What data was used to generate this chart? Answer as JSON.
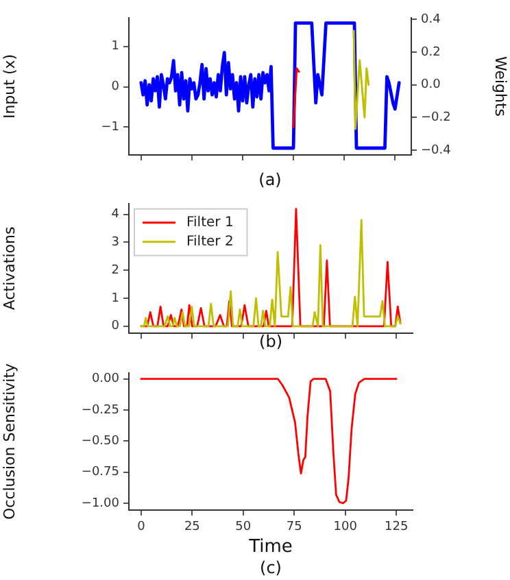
{
  "chart_data": [
    {
      "type": "line",
      "ylabel": "Input (x)",
      "y2label": "Weights",
      "annotations": [
        "(a)"
      ],
      "xlim": [
        -6,
        133
      ],
      "xticks": [
        {
          "value": 0,
          "label": null
        },
        {
          "value": 25,
          "label": null
        },
        {
          "value": 50,
          "label": null
        },
        {
          "value": 75,
          "label": null
        },
        {
          "value": 100,
          "label": null
        },
        {
          "value": 125,
          "label": null
        }
      ],
      "ylim": [
        -1.69,
        1.71
      ],
      "yticks": [
        {
          "value": -1,
          "label": "−1"
        },
        0,
        1
      ],
      "y2lim": [
        -0.43,
        0.41
      ],
      "y2ticks": [
        {
          "value": -0.4,
          "label": "−0.4"
        },
        {
          "value": -0.2,
          "label": "−0.2"
        },
        {
          "value": 0,
          "label": "0.0"
        },
        0.2,
        0.4
      ],
      "tick_labels": "y",
      "grid": false,
      "legend": false,
      "marker": "none",
      "line_style": "solid",
      "series": [
        {
          "color": "#0000ff",
          "x": [
            0,
            1,
            2,
            3,
            4,
            5,
            6,
            7,
            8,
            9,
            10,
            11,
            12,
            13,
            14,
            15,
            16,
            17,
            18,
            19,
            20,
            21,
            22,
            23,
            24,
            25,
            26,
            27,
            28,
            29,
            30,
            31,
            32,
            33,
            34,
            35,
            36,
            37,
            38,
            39,
            40,
            41,
            42,
            43,
            44,
            45,
            46,
            47,
            48,
            49,
            50,
            51,
            52,
            53,
            54,
            55,
            56,
            57,
            58,
            59,
            60,
            61,
            62,
            63,
            64,
            65,
            75,
            76,
            84,
            86,
            87,
            89,
            91,
            105,
            106,
            120,
            121,
            122,
            124,
            125,
            127
          ],
          "values": [
            0.1,
            -0.2,
            0.15,
            -0.45,
            0.05,
            -0.35,
            0.2,
            -0.1,
            0.25,
            -0.5,
            0.3,
            0.05,
            -0.3,
            0.2,
            0.1,
            0.25,
            0.65,
            -0.1,
            0.3,
            -0.45,
            0.35,
            -0.3,
            0.15,
            -0.6,
            0.2,
            -0.05,
            0.1,
            -0.3,
            -0.2,
            0.1,
            0.55,
            -0.3,
            0.45,
            -0.1,
            0.2,
            -0.2,
            0.1,
            -0.25,
            0.3,
            -0.1,
            0.5,
            0.85,
            -0.2,
            0.6,
            -0.05,
            0.3,
            -0.3,
            0.1,
            -0.6,
            0.25,
            -0.35,
            0.25,
            -0.4,
            0.05,
            0.3,
            -0.5,
            0.2,
            -0.25,
            0.3,
            -0.3,
            0.35,
            0.1,
            0.3,
            -0.1,
            0.5,
            -1.52,
            -1.52,
            1.58,
            1.58,
            -0.4,
            0.3,
            -0.2,
            1.58,
            1.58,
            -1.52,
            -1.52,
            0.25,
            0.1,
            -0.4,
            -0.55,
            0.1
          ]
        },
        {
          "color": "#ff0000",
          "axis": "y2",
          "x": [
            75,
            76.6,
            77.7
          ],
          "values": [
            -0.26,
            0.1,
            0.08
          ]
        },
        {
          "color": "#bfbf00",
          "axis": "y2",
          "x": [
            104.7,
            105.5,
            107.6,
            110,
            111,
            112
          ],
          "values": [
            0.33,
            -0.27,
            0.15,
            -0.2,
            0.1,
            0
          ]
        }
      ]
    },
    {
      "type": "line",
      "ylabel": "Activations",
      "annotations": [
        "(b)"
      ],
      "xlim": [
        -6,
        133
      ],
      "xticks": [
        {
          "value": 0,
          "label": null
        },
        {
          "value": 25,
          "label": null
        },
        {
          "value": 50,
          "label": null
        },
        {
          "value": 75,
          "label": null
        },
        {
          "value": 100,
          "label": null
        },
        {
          "value": 125,
          "label": null
        }
      ],
      "ylim": [
        -0.25,
        4.39
      ],
      "yticks": [
        0,
        1,
        2,
        3,
        4
      ],
      "tick_labels": "y",
      "grid": false,
      "legend": "top left",
      "marker": "none",
      "line_style": "solid",
      "series": [
        {
          "name": "Filter 1",
          "color": "#ff0000",
          "x": [
            0,
            3,
            4.5,
            6,
            8,
            9.5,
            11,
            13,
            14.6,
            16,
            18,
            19.8,
            21,
            22.5,
            23.6,
            25,
            27.5,
            29.3,
            31,
            36.5,
            38.7,
            40.5,
            42,
            43.2,
            44.5,
            49,
            50.7,
            52.5,
            60,
            61.3,
            62.5,
            74,
            75.9,
            78,
            89.5,
            91,
            92.5,
            119,
            120.7,
            122.5,
            124.5,
            125.7,
            127
          ],
          "values": [
            0,
            0,
            0.5,
            0,
            0,
            0.7,
            0,
            0,
            0.4,
            0,
            0,
            0.6,
            0,
            0,
            0.75,
            0,
            0,
            0.65,
            0,
            0,
            0.4,
            0,
            0,
            0.9,
            0,
            0,
            0.75,
            0,
            0,
            0.55,
            0,
            0,
            4.2,
            0,
            0,
            2.35,
            0,
            0,
            2.3,
            0,
            0,
            0.7,
            0.1
          ]
        },
        {
          "name": "Filter 2",
          "color": "#bfbf00",
          "x": [
            0,
            1.5,
            2.3,
            3.2,
            11.5,
            13,
            14.2,
            15.5,
            16.4,
            17.5,
            19,
            20.3,
            21.5,
            23.5,
            24.8,
            26,
            33,
            34.2,
            35.5,
            42.5,
            43.9,
            45,
            47.3,
            48.4,
            49.5,
            55,
            56.3,
            57.5,
            58.7,
            59.7,
            60.8,
            63,
            64.2,
            65.5,
            66.9,
            68.7,
            72,
            73.2,
            74.3,
            84,
            85,
            86.6,
            87.8,
            89,
            103.5,
            104.7,
            106,
            107.9,
            109.2,
            117,
            118.2,
            119.4,
            124.5,
            125.7,
            127
          ],
          "values": [
            0,
            0,
            0.3,
            0,
            0,
            0.35,
            0,
            0,
            0.3,
            0,
            0,
            0.5,
            0,
            0,
            0.7,
            0,
            0,
            0.8,
            0,
            0,
            1.25,
            0,
            0,
            0.6,
            0,
            0,
            1.0,
            0,
            0,
            0.55,
            0,
            0,
            0.95,
            0,
            2.65,
            0.35,
            0.35,
            1.4,
            0,
            0,
            0.5,
            0,
            2.9,
            0,
            0,
            1.05,
            0,
            3.8,
            0.35,
            0.35,
            0.9,
            0,
            0,
            0.35,
            0.1
          ]
        }
      ]
    },
    {
      "type": "line",
      "ylabel": "Occlusion Sensitivity",
      "xlabel": "Time",
      "annotations": [
        "(c)"
      ],
      "xlim": [
        -6,
        133
      ],
      "xticks": [
        0,
        25,
        50,
        75,
        100,
        125
      ],
      "ylim": [
        -1.055,
        0.048
      ],
      "yticks": [
        {
          "value": -1,
          "label": "−1.00"
        },
        {
          "value": -0.75,
          "label": "−0.75"
        },
        {
          "value": -0.5,
          "label": "−0.50"
        },
        {
          "value": -0.25,
          "label": "−0.25"
        },
        {
          "value": 0,
          "label": "0.00"
        }
      ],
      "grid": false,
      "legend": false,
      "marker": "none",
      "line_style": "solid",
      "series": [
        {
          "color": "#ff0000",
          "x": [
            0,
            67,
            69.2,
            72.5,
            75.4,
            77,
            78.3,
            79.5,
            80.4,
            81.5,
            83,
            84.4,
            90.4,
            92.6,
            94.2,
            95.5,
            97.1,
            98.9,
            100.4,
            101.6,
            103.1,
            104.9,
            106.7,
            109.4,
            125
          ],
          "values": [
            0,
            0,
            -0.05,
            -0.15,
            -0.35,
            -0.6,
            -0.76,
            -0.65,
            -0.63,
            -0.3,
            -0.02,
            0,
            0,
            -0.1,
            -0.6,
            -0.93,
            -0.99,
            -1.0,
            -0.98,
            -0.8,
            -0.4,
            -0.12,
            -0.03,
            0,
            0
          ]
        }
      ]
    }
  ]
}
